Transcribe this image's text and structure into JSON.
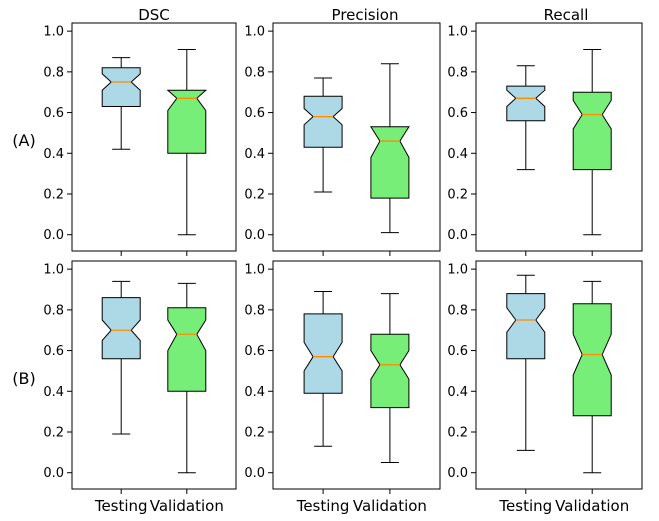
{
  "column_titles": [
    "DSC",
    "Precision",
    "Recall"
  ],
  "row_labels": [
    "(A)",
    "(B)"
  ],
  "colors": {
    "testing_box": "#add8e6",
    "validation_box": "#77ee77",
    "median": "#ff8c00",
    "edge": "#000000"
  },
  "chart_data": {
    "type": "box",
    "layout": "2x3 grid",
    "grid": false,
    "categories": [
      "Testing",
      "Validation"
    ],
    "yticks": [
      "0.0",
      "0.2",
      "0.4",
      "0.6",
      "0.8",
      "1.0"
    ],
    "ylim": [
      -0.08,
      1.04
    ],
    "panels": [
      {
        "row": "(A)",
        "metric": "DSC",
        "boxes": [
          {
            "category": "Testing",
            "min": 0.42,
            "q1": 0.63,
            "median": 0.75,
            "q3": 0.82,
            "max": 0.87,
            "notch_low": 0.71,
            "notch_high": 0.79
          },
          {
            "category": "Validation",
            "min": 0.0,
            "q1": 0.4,
            "median": 0.67,
            "q3": 0.71,
            "max": 0.91,
            "notch_low": 0.61,
            "notch_high": 0.73
          }
        ]
      },
      {
        "row": "(A)",
        "metric": "Precision",
        "boxes": [
          {
            "category": "Testing",
            "min": 0.21,
            "q1": 0.43,
            "median": 0.58,
            "q3": 0.68,
            "max": 0.77,
            "notch_low": 0.54,
            "notch_high": 0.62
          },
          {
            "category": "Validation",
            "min": 0.01,
            "q1": 0.18,
            "median": 0.46,
            "q3": 0.53,
            "max": 0.84,
            "notch_low": 0.38,
            "notch_high": 0.54
          }
        ]
      },
      {
        "row": "(A)",
        "metric": "Recall",
        "boxes": [
          {
            "category": "Testing",
            "min": 0.32,
            "q1": 0.56,
            "median": 0.67,
            "q3": 0.73,
            "max": 0.83,
            "notch_low": 0.63,
            "notch_high": 0.71
          },
          {
            "category": "Validation",
            "min": 0.0,
            "q1": 0.32,
            "median": 0.59,
            "q3": 0.7,
            "max": 0.91,
            "notch_low": 0.52,
            "notch_high": 0.66
          }
        ]
      },
      {
        "row": "(B)",
        "metric": "DSC",
        "boxes": [
          {
            "category": "Testing",
            "min": 0.19,
            "q1": 0.56,
            "median": 0.7,
            "q3": 0.86,
            "max": 0.94,
            "notch_low": 0.65,
            "notch_high": 0.75
          },
          {
            "category": "Validation",
            "min": 0.0,
            "q1": 0.4,
            "median": 0.68,
            "q3": 0.81,
            "max": 0.93,
            "notch_low": 0.6,
            "notch_high": 0.75
          }
        ]
      },
      {
        "row": "(B)",
        "metric": "Precision",
        "boxes": [
          {
            "category": "Testing",
            "min": 0.13,
            "q1": 0.39,
            "median": 0.57,
            "q3": 0.78,
            "max": 0.89,
            "notch_low": 0.5,
            "notch_high": 0.64
          },
          {
            "category": "Validation",
            "min": 0.05,
            "q1": 0.32,
            "median": 0.53,
            "q3": 0.68,
            "max": 0.88,
            "notch_low": 0.46,
            "notch_high": 0.6
          }
        ]
      },
      {
        "row": "(B)",
        "metric": "Recall",
        "boxes": [
          {
            "category": "Testing",
            "min": 0.11,
            "q1": 0.56,
            "median": 0.75,
            "q3": 0.88,
            "max": 0.97,
            "notch_low": 0.69,
            "notch_high": 0.81
          },
          {
            "category": "Validation",
            "min": 0.0,
            "q1": 0.28,
            "median": 0.58,
            "q3": 0.83,
            "max": 0.94,
            "notch_low": 0.48,
            "notch_high": 0.68
          }
        ]
      }
    ]
  }
}
